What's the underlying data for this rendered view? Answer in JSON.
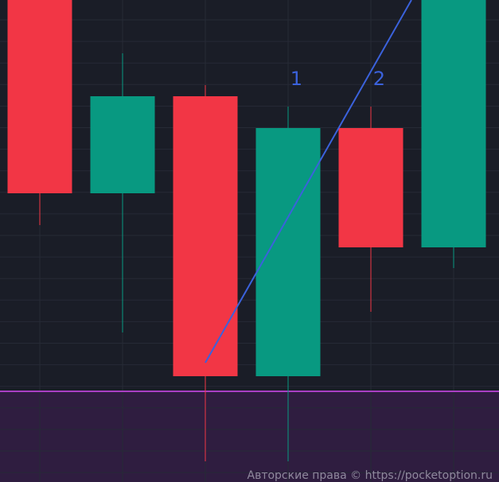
{
  "chart_data": {
    "type": "candlestick",
    "title": "",
    "xlabel": "",
    "ylabel": "",
    "ylim": [
      0,
      606
    ],
    "grid": true,
    "candles": [
      {
        "open": 626,
        "high": 640,
        "low": 323,
        "close": 363
      },
      {
        "open": 363,
        "high": 539,
        "low": 188,
        "close": 485
      },
      {
        "open": 485,
        "high": 499,
        "low": 26,
        "close": 133
      },
      {
        "open": 133,
        "high": 472,
        "low": 26,
        "close": 445
      },
      {
        "open": 445,
        "high": 472,
        "low": 214,
        "close": 295
      },
      {
        "open": 295,
        "high": 640,
        "low": 269,
        "close": 626
      }
    ],
    "level_line": {
      "price": 114,
      "color": "#a93fc4",
      "zone_fill": "#2f1d40"
    },
    "trendline": {
      "from": [
        2,
        150
      ],
      "to": [
        4.49,
        606
      ],
      "color": "#3b62dc"
    },
    "annotations": [
      {
        "text": "1",
        "x": 3.1,
        "price": 509
      },
      {
        "text": "2",
        "x": 4.1,
        "price": 509
      }
    ],
    "colors": {
      "up": "#089981",
      "down": "#f23645",
      "background": "#1a1d27",
      "grid": "#262a36"
    }
  },
  "watermark": "Авторские права © https://pocketoption.ru"
}
